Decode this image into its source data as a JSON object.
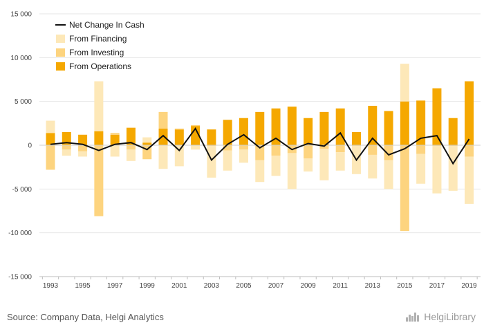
{
  "chart_data": {
    "type": "bar",
    "stacked": true,
    "categories": [
      "1993",
      "1994",
      "1995",
      "1996",
      "1997",
      "1998",
      "1999",
      "2000",
      "2001",
      "2002",
      "2003",
      "2004",
      "2005",
      "2006",
      "2007",
      "2008",
      "2009",
      "2010",
      "2011",
      "2012",
      "2013",
      "2014",
      "2015",
      "2016",
      "2017",
      "2018",
      "2019"
    ],
    "x_tick_labels": [
      "1993",
      "1995",
      "1997",
      "1999",
      "2001",
      "2003",
      "2005",
      "2007",
      "2009",
      "2011",
      "2013",
      "2015",
      "2017",
      "2019"
    ],
    "y_ticks": [
      15000,
      10000,
      5000,
      0,
      -5000,
      -10000,
      -15000
    ],
    "y_tick_labels": [
      "15 000",
      "10 000",
      "5 000",
      "0",
      "-5 000",
      "-10 000",
      "-15 000"
    ],
    "ylim": [
      -15000,
      15000
    ],
    "grid": true,
    "legend_position": "top-left",
    "series": [
      {
        "name": "From Operations",
        "color": "#f5a800",
        "values": [
          1400,
          1500,
          1200,
          1600,
          1200,
          2000,
          300,
          1900,
          1800,
          2200,
          1800,
          2900,
          3100,
          3800,
          4200,
          4400,
          3100,
          3800,
          4200,
          1500,
          4500,
          3900,
          5000,
          5100,
          6500,
          3100,
          7300
        ]
      },
      {
        "name": "From Investing",
        "color": "#fdd47f",
        "values": [
          -2800,
          -500,
          -700,
          -8100,
          200,
          -500,
          -1600,
          1900,
          100,
          100,
          -100,
          -600,
          -500,
          -1700,
          -1200,
          -900,
          -1500,
          -400,
          -800,
          -100,
          -1100,
          -1700,
          -9800,
          -1000,
          -100,
          -100,
          -1300
        ]
      },
      {
        "name": "From Financing",
        "color": "#fde8b8",
        "values": [
          1400,
          -700,
          -600,
          5700,
          -1300,
          -1300,
          600,
          -2700,
          -2400,
          -500,
          -3600,
          -2300,
          -1500,
          -2500,
          -2300,
          -4100,
          -1500,
          -3600,
          -2100,
          -3200,
          -2700,
          -3300,
          4300,
          -3400,
          -5400,
          -5100,
          -5400
        ]
      },
      {
        "name": "Net Change In Cash",
        "color": "#111111",
        "kind": "line",
        "values": [
          100,
          300,
          100,
          -600,
          100,
          300,
          -500,
          1100,
          -600,
          1900,
          -1700,
          100,
          1200,
          -300,
          800,
          -500,
          200,
          -100,
          1400,
          -1700,
          800,
          -1100,
          -400,
          800,
          1100,
          -2100,
          700
        ]
      }
    ]
  },
  "footer": {
    "source": "Source: Company Data, Helgi Analytics",
    "brand": "HelgiLibrary",
    "brand_icon": "bar-chart-logo-icon"
  }
}
